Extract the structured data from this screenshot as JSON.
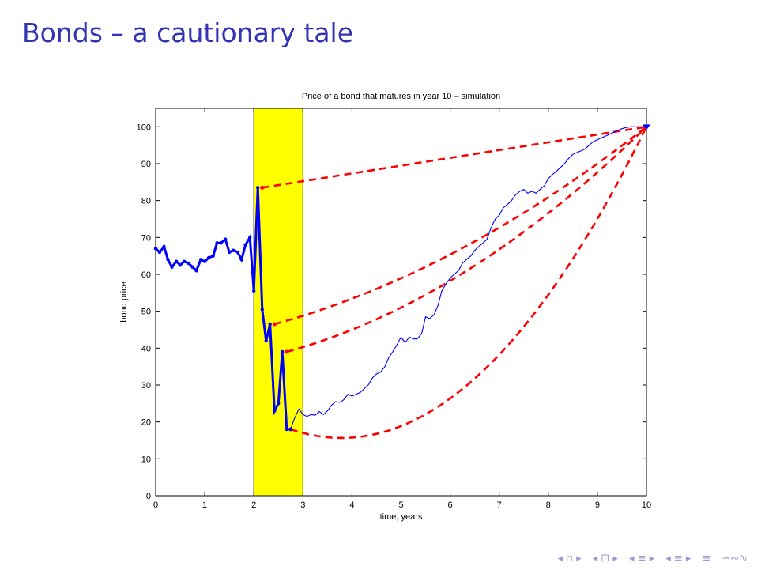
{
  "slide": {
    "title": "Bonds – a cautionary tale"
  },
  "colors": {
    "title": "#3333b3",
    "series_main": "#0000ff",
    "projection": "#ff0000",
    "highlight": "#ffff00"
  },
  "nav": {
    "icons": [
      "nav-first-icon",
      "nav-frame-icon",
      "nav-section-icon",
      "nav-subsection-icon",
      "nav-align-icon",
      "nav-search-icon"
    ],
    "glyphs": [
      "◂ ▫ ▸",
      "◂ ⊡ ▸",
      "◂ ≡ ▸",
      "◂ ≡ ▸",
      "≡",
      "∽∾∿"
    ]
  },
  "chart_data": {
    "type": "line",
    "title": "Price of a bond that matures in year 10 – simulation",
    "xlabel": "time, years",
    "ylabel": "bond price",
    "xlim": [
      0,
      10
    ],
    "ylim": [
      0,
      105
    ],
    "xticks": [
      0,
      1,
      2,
      3,
      4,
      5,
      6,
      7,
      8,
      9,
      10
    ],
    "yticks": [
      0,
      10,
      20,
      30,
      40,
      50,
      60,
      70,
      80,
      90,
      100
    ],
    "highlight_band": [
      2,
      3
    ],
    "series": [
      {
        "style": "thick-markers",
        "x": [
          0,
          0.08,
          0.17,
          0.25,
          0.33,
          0.42,
          0.5,
          0.58,
          0.67,
          0.75,
          0.83,
          0.92,
          1.0,
          1.08,
          1.17,
          1.25,
          1.33,
          1.42,
          1.5,
          1.58,
          1.67,
          1.75,
          1.83,
          1.92,
          2.0,
          2.08,
          2.17,
          2.25,
          2.33,
          2.42,
          2.5,
          2.58,
          2.67,
          2.75
        ],
        "y": [
          67,
          66,
          67.5,
          64,
          62,
          63.5,
          62.5,
          63.5,
          63,
          62,
          61,
          64,
          63.5,
          64.5,
          65,
          68.5,
          68.5,
          69.5,
          66,
          66.5,
          66,
          64,
          68,
          70,
          55.5,
          83.5,
          50.5,
          42,
          46.5,
          23,
          25,
          39,
          18,
          18
        ]
      },
      {
        "style": "thin",
        "x": [
          2.75,
          2.83,
          2.92,
          3.0,
          3.08,
          3.17,
          3.25,
          3.33,
          3.42,
          3.5,
          3.58,
          3.67,
          3.75,
          3.83,
          3.92,
          4.0,
          4.08,
          4.17,
          4.25,
          4.33,
          4.42,
          4.5,
          4.58,
          4.67,
          4.75,
          4.83,
          4.92,
          5.0,
          5.08,
          5.17,
          5.25,
          5.33,
          5.42,
          5.5,
          5.58,
          5.67,
          5.75,
          5.83,
          5.92,
          6.0,
          6.08,
          6.17,
          6.25,
          6.33,
          6.42,
          6.5,
          6.58,
          6.67,
          6.75,
          6.83,
          6.92,
          7.0,
          7.08,
          7.17,
          7.25,
          7.33,
          7.42,
          7.5,
          7.58,
          7.67,
          7.75,
          7.83,
          7.92,
          8.0,
          8.08,
          8.17,
          8.25,
          8.33,
          8.42,
          8.5,
          8.58,
          8.67,
          8.75,
          8.83,
          8.92,
          9.0,
          9.08,
          9.17,
          9.25,
          9.33,
          9.42,
          9.5,
          9.58,
          9.67,
          9.75,
          9.83,
          9.92,
          10.0
        ],
        "y": [
          18,
          21,
          23.5,
          22,
          21.5,
          22,
          21.8,
          22.8,
          22,
          23,
          24.5,
          25.5,
          25.3,
          26,
          27.5,
          27,
          27.5,
          28,
          29,
          30,
          32,
          33,
          33.5,
          35,
          37.5,
          39,
          41,
          43,
          41.5,
          43,
          42.5,
          42.5,
          44,
          48.5,
          48,
          49,
          51.5,
          55.5,
          57.5,
          59,
          60,
          61,
          63,
          64,
          65,
          66.5,
          67.5,
          68.5,
          69.5,
          72.5,
          75,
          76,
          78,
          79,
          80,
          81.5,
          82.5,
          83,
          82,
          82.5,
          82,
          83,
          84,
          86,
          87,
          88,
          89,
          90,
          91.5,
          92.5,
          93,
          93.5,
          94,
          95,
          96,
          96.5,
          97,
          97.5,
          98,
          98.5,
          99,
          99.5,
          99.8,
          100,
          100,
          100,
          100,
          100
        ]
      }
    ],
    "projections": [
      {
        "start": [
          2.17,
          83.5
        ],
        "end": [
          10,
          100
        ],
        "bow": 0.0
      },
      {
        "start": [
          2.42,
          46.5
        ],
        "end": [
          10,
          100
        ],
        "bow": 0.12
      },
      {
        "start": [
          2.67,
          39
        ],
        "end": [
          10,
          100
        ],
        "bow": 0.14
      },
      {
        "start": [
          2.75,
          18
        ],
        "end": [
          10,
          100
        ],
        "bow": 0.35
      }
    ]
  }
}
